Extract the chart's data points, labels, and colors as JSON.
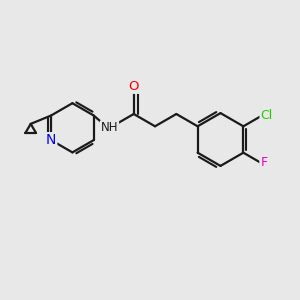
{
  "bg_color": "#e8e8e8",
  "bond_color": "#1a1a1a",
  "bond_width": 1.6,
  "atom_colors": {
    "O": "#ff0000",
    "N_pyridine": "#0000ee",
    "N_amide": "#1a1a1a",
    "Cl": "#22cc00",
    "F": "#ee00cc",
    "H": "#1a1a1a"
  }
}
